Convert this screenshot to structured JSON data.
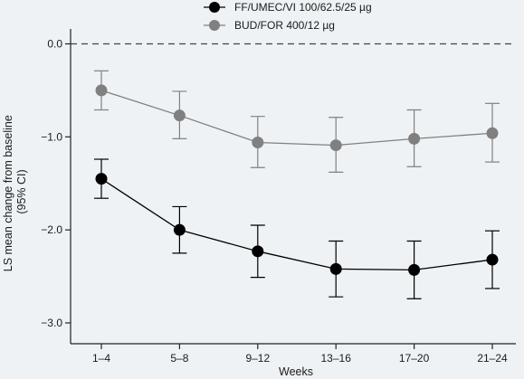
{
  "chart_data": {
    "type": "line",
    "title": "",
    "xlabel": "Weeks",
    "ylabel_line1": "LS mean change from baseline",
    "ylabel_line2": "(95% CI)",
    "categories": [
      "1–4",
      "5–8",
      "9–12",
      "13–16",
      "17–20",
      "21–24"
    ],
    "ylim": [
      -3.0,
      0.0
    ],
    "yticks": [
      0.0,
      -1.0,
      -2.0,
      -3.0
    ],
    "ytick_labels": [
      "0.0",
      "−1.0",
      "−2.0",
      "−3.0"
    ],
    "reference_line": 0.0,
    "legend_position": "top-center",
    "series": [
      {
        "name": "FF/UMEC/VI 100/62.5/25 µg",
        "color": "#000000",
        "values": [
          -1.45,
          -2.0,
          -2.23,
          -2.42,
          -2.43,
          -2.32
        ],
        "ci_low": [
          -1.66,
          -2.25,
          -2.51,
          -2.72,
          -2.74,
          -2.63
        ],
        "ci_high": [
          -1.24,
          -1.75,
          -1.95,
          -2.12,
          -2.12,
          -2.01
        ]
      },
      {
        "name": "BUD/FOR 400/12 µg",
        "color": "#808080",
        "values": [
          -0.5,
          -0.77,
          -1.06,
          -1.09,
          -1.02,
          -0.96
        ],
        "ci_low": [
          -0.71,
          -1.02,
          -1.33,
          -1.38,
          -1.32,
          -1.27
        ],
        "ci_high": [
          -0.29,
          -0.51,
          -0.78,
          -0.79,
          -0.71,
          -0.64
        ]
      }
    ]
  }
}
